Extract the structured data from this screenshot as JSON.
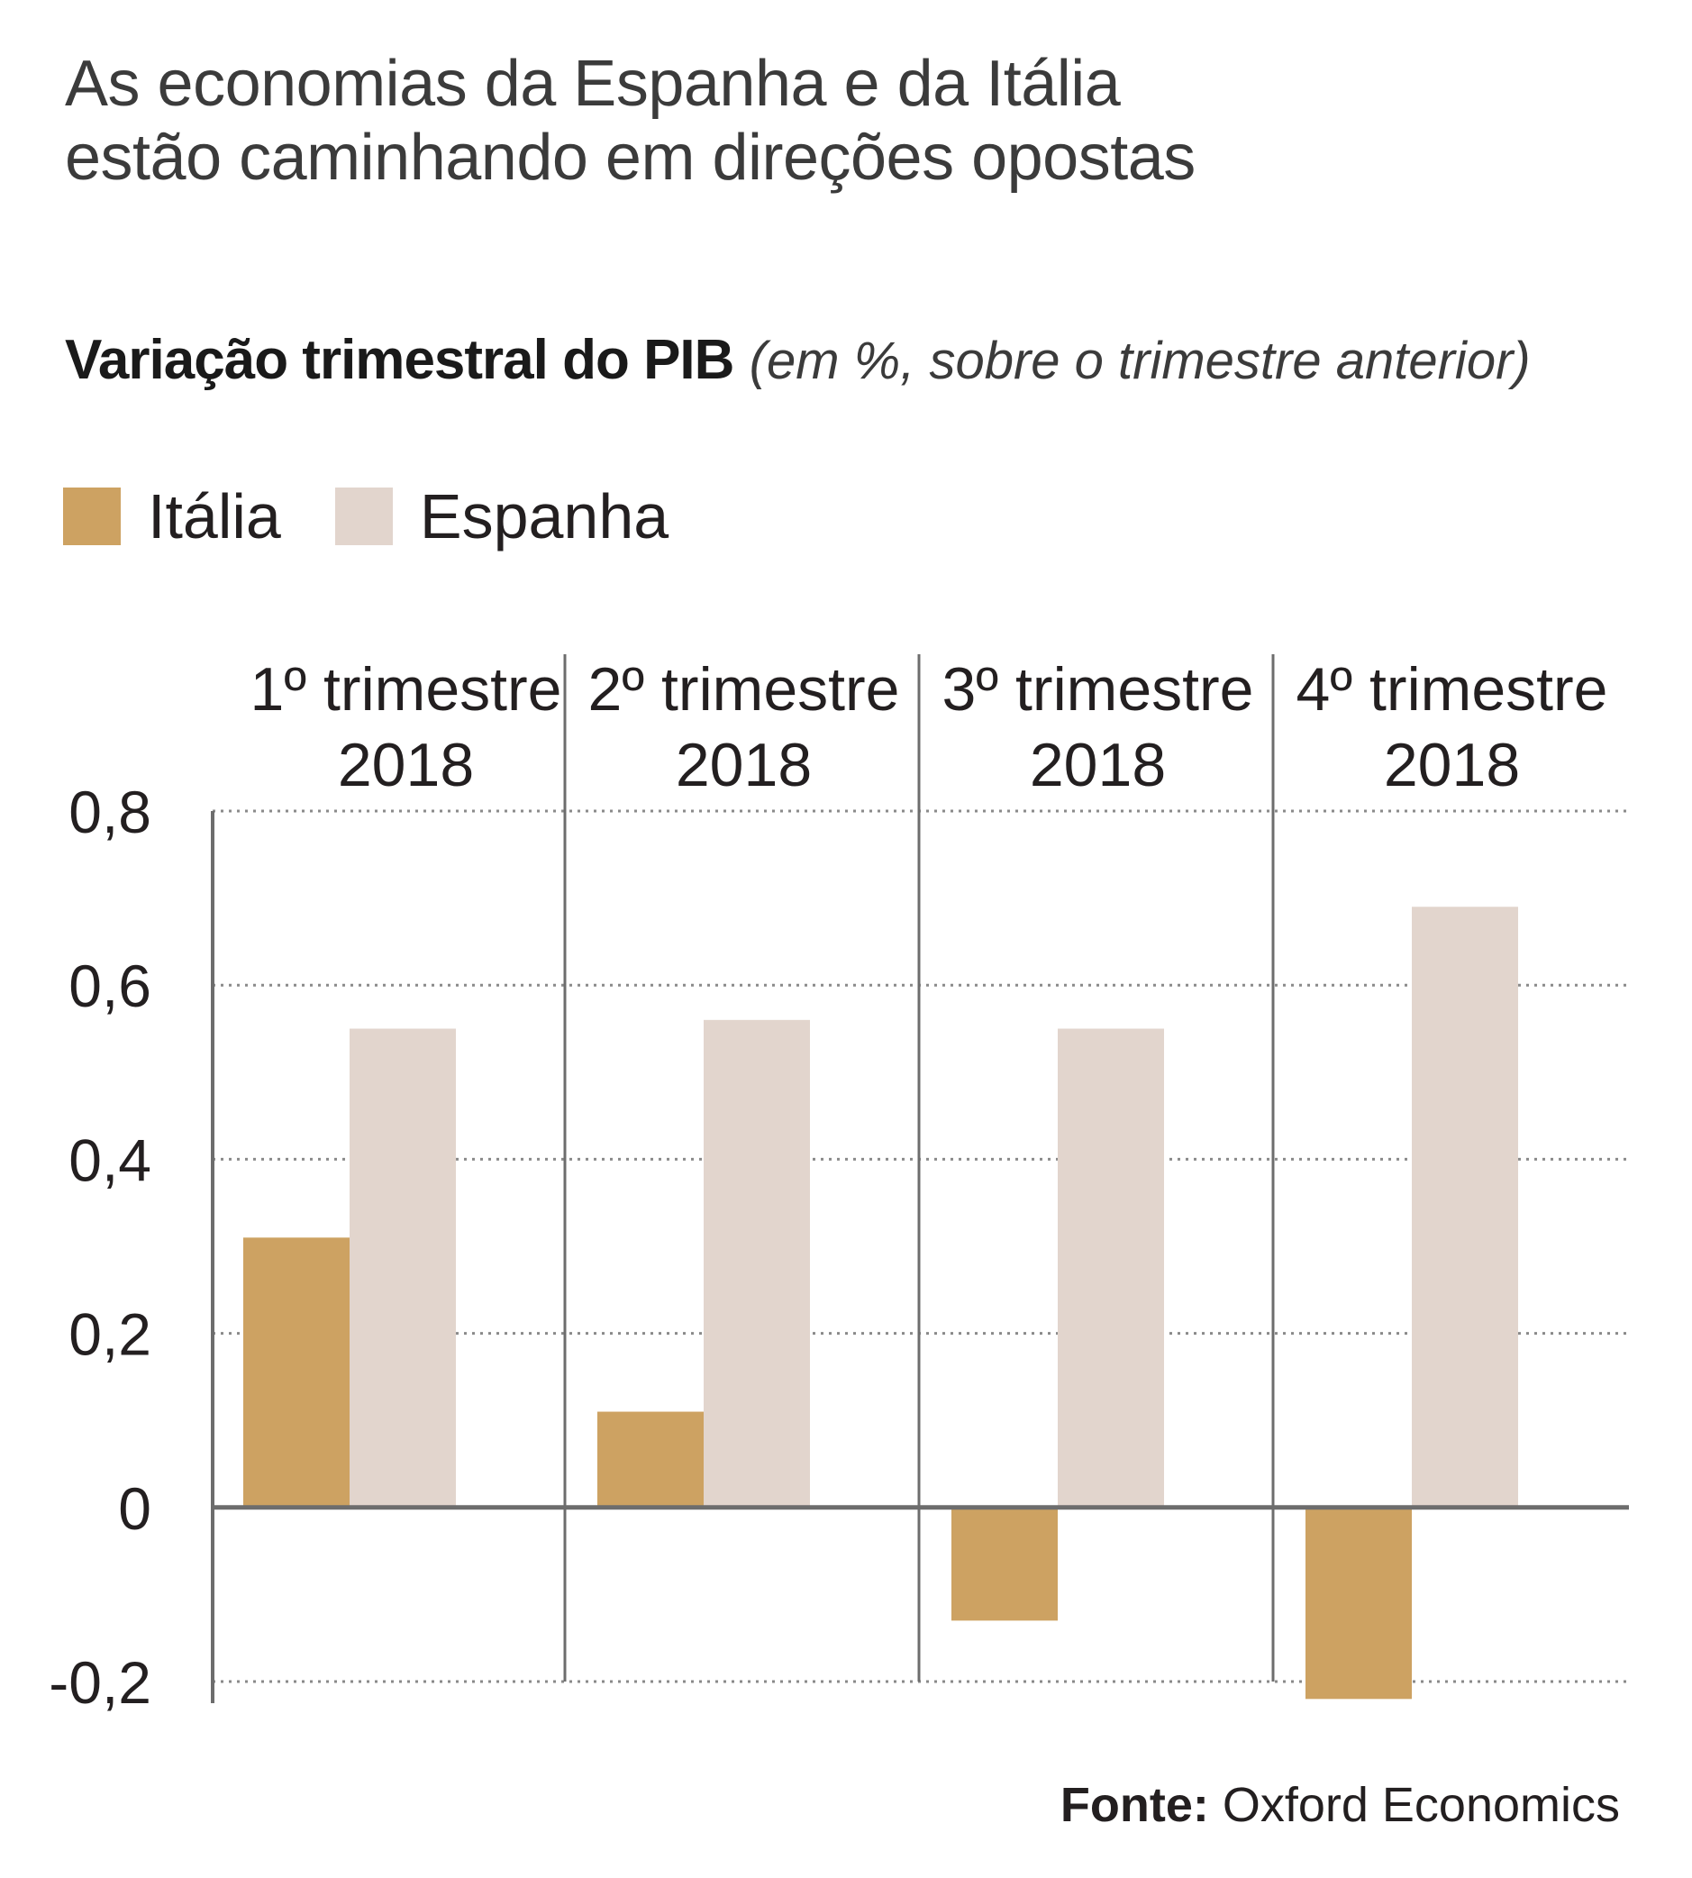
{
  "headline": {
    "line1": "As economias da Espanha e da Itália",
    "line2": "estão caminhando em direções opostas"
  },
  "subtitle": {
    "bold": "Variação trimestral do PIB",
    "italic": "(em %, sobre o trimestre anterior)"
  },
  "colors": {
    "italia": "#cda262",
    "espanha": "#e2d5cd",
    "axis": "#6d6d6d",
    "grid": "#8a8a8a",
    "text": "#231f20"
  },
  "source": {
    "label": "Fonte:",
    "value": "Oxford Economics"
  },
  "chart_data": {
    "type": "bar",
    "title": "Variação trimestral do PIB",
    "subtitle": "(em %, sobre o trimestre anterior)",
    "xlabel": "",
    "ylabel": "",
    "ylim": [
      -0.2,
      0.8
    ],
    "yticks": [
      0.8,
      0.6,
      0.4,
      0.2,
      0,
      -0.2
    ],
    "ytick_labels": [
      "0,8",
      "0,6",
      "0,4",
      "0,2",
      "0",
      "-0,2"
    ],
    "grid": true,
    "legend_position": "top-left",
    "categories": [
      [
        "1º trimestre",
        "2018"
      ],
      [
        "2º trimestre",
        "2018"
      ],
      [
        "3º trimestre",
        "2018"
      ],
      [
        "4º trimestre",
        "2018"
      ]
    ],
    "series": [
      {
        "name": "Itália",
        "color": "#cda262",
        "values": [
          0.31,
          0.11,
          -0.13,
          -0.22
        ]
      },
      {
        "name": "Espanha",
        "color": "#e2d5cd",
        "values": [
          0.55,
          0.56,
          0.55,
          0.69
        ]
      }
    ]
  }
}
